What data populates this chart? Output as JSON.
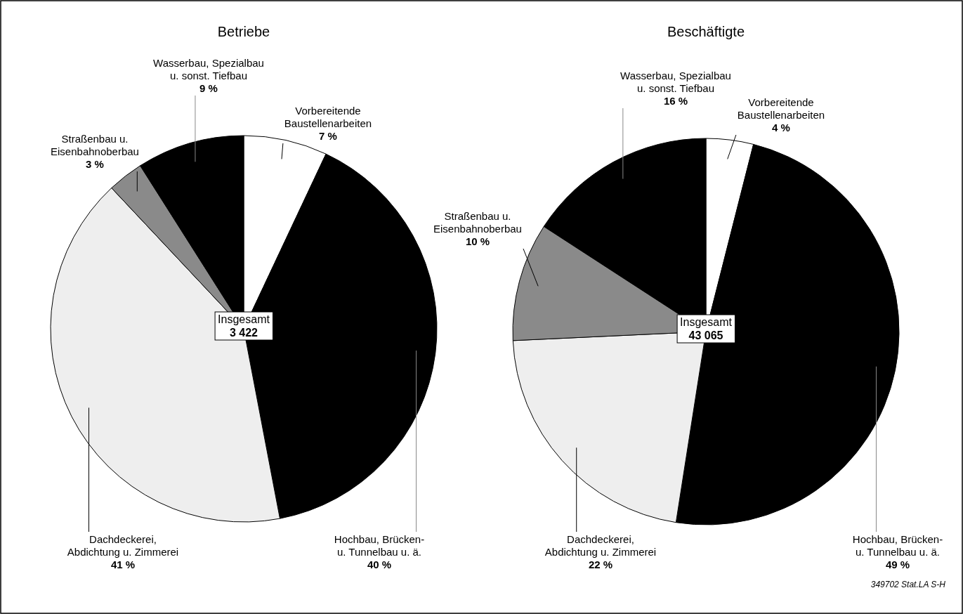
{
  "chart_data": [
    {
      "type": "pie",
      "title": "Betriebe",
      "categories": [
        "Vorbereitende\nBaustellenarbeiten",
        "Hochbau, Brücken-\nu. Tunnelbau u. ä.",
        "Dachdeckerei,\nAbdichtung u. Zimmerei",
        "Straßenbau u.\nEisenbahnoberbau",
        "Wasserbau, Spezialbau\nu. sonst. Tiefbau"
      ],
      "values": [
        7,
        40,
        41,
        3,
        9
      ],
      "colors": [
        "#ffffff",
        "#000000",
        "#eeeeee",
        "#8a8a8a",
        "#000000"
      ],
      "value_labels": [
        "7 %",
        "40 %",
        "41 %",
        "3 %",
        "9 %"
      ],
      "annotations": [
        "Insgesamt\n3 422"
      ]
    },
    {
      "type": "pie",
      "title": "Beschäftigte",
      "categories": [
        "Vorbereitende\nBaustellenarbeiten",
        "Hochbau, Brücken-\nu. Tunnelbau u. ä.",
        "Dachdeckerei,\nAbdichtung u. Zimmerei",
        "Straßenbau u.\nEisenbahnoberbau",
        "Wasserbau, Spezialbau\nu. sonst. Tiefbau"
      ],
      "values": [
        4,
        49,
        22,
        10,
        16
      ],
      "colors": [
        "#ffffff",
        "#000000",
        "#eeeeee",
        "#8a8a8a",
        "#000000"
      ],
      "value_labels": [
        "4 %",
        "49 %",
        "22 %",
        "10 %",
        "16 %"
      ],
      "annotations": [
        "Insgesamt\n43 065",
        "349702 Stat.LA S-H"
      ]
    }
  ]
}
